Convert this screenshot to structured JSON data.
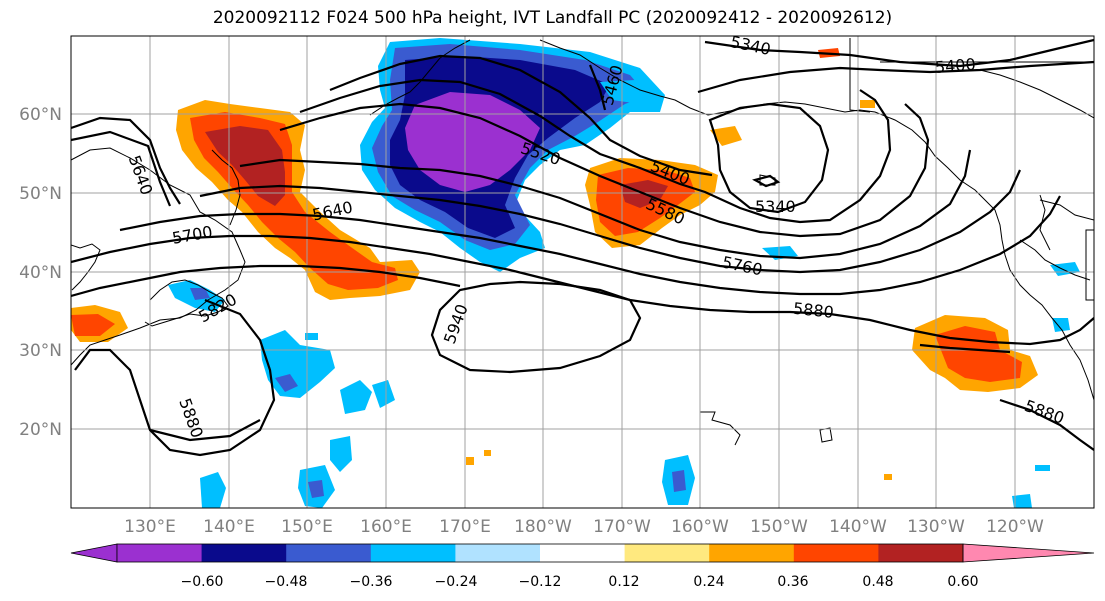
{
  "title": "2020092112 F024 500 hPa height, IVT Landfall PC (2020092412 - 2020092612)",
  "map": {
    "lon_labels": [
      "130°E",
      "140°E",
      "150°E",
      "160°E",
      "170°E",
      "180°W",
      "170°W",
      "160°W",
      "150°W",
      "140°W",
      "130°W",
      "120°W"
    ],
    "lat_labels": [
      "60°N",
      "50°N",
      "40°N",
      "30°N",
      "20°N"
    ],
    "contour_labels": [
      {
        "text": "5340",
        "name": "contour-label-5340-north"
      },
      {
        "text": "5400",
        "name": "contour-label-5400-ne"
      },
      {
        "text": "5640",
        "name": "contour-label-5640-west"
      },
      {
        "text": "5700",
        "name": "contour-label-5700"
      },
      {
        "text": "5640",
        "name": "contour-label-5640-kamchatka"
      },
      {
        "text": "5520",
        "name": "contour-label-5520"
      },
      {
        "text": "5400",
        "name": "contour-label-5400-gulf"
      },
      {
        "text": "5580",
        "name": "contour-label-5580"
      },
      {
        "text": "5340",
        "name": "contour-label-5340-low"
      },
      {
        "text": "5760",
        "name": "contour-label-5760"
      },
      {
        "text": "5880",
        "name": "contour-label-5880-mid"
      },
      {
        "text": "5940",
        "name": "contour-label-5940"
      },
      {
        "text": "5820",
        "name": "contour-label-5820"
      },
      {
        "text": "5880",
        "name": "contour-label-5880-west"
      },
      {
        "text": "5880",
        "name": "contour-label-5880-east"
      },
      {
        "text": "5460",
        "name": "contour-label-5460"
      }
    ]
  },
  "colorbar": {
    "ticks": [
      "−0.60",
      "−0.48",
      "−0.36",
      "−0.24",
      "−0.12",
      "0.12",
      "0.24",
      "0.36",
      "0.48",
      "0.60"
    ],
    "colors": [
      "#9b30d0",
      "#0a0a8c",
      "#3a5bd0",
      "#00bfff",
      "#b0e2ff",
      "#ffffff",
      "#ffe97f",
      "#ffa500",
      "#ff4500",
      "#b22222"
    ],
    "under_color": "#9b30d0",
    "over_color": "#ff88b0"
  }
}
